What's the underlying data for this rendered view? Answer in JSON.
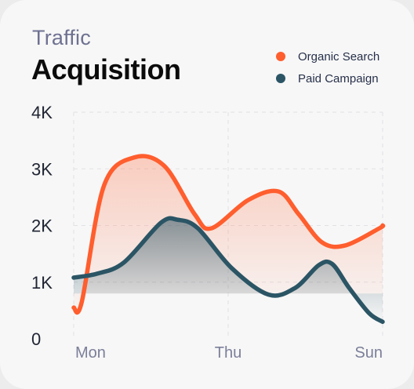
{
  "header": {
    "subtitle": "Traffic",
    "title": "Acquisition"
  },
  "colors": {
    "organic": "#ff5e2e",
    "paid": "#2b5565",
    "grid": "#e2e2e6"
  },
  "chart_data": {
    "type": "area",
    "title": "Acquisition",
    "subtitle": "Traffic",
    "x_ticks": [
      "Mon",
      "Thu",
      "Sun"
    ],
    "y_ticks": [
      "0",
      "1K",
      "2K",
      "3K",
      "4K"
    ],
    "ylim": [
      0,
      4000
    ],
    "legend_position": "top-right",
    "grid": true,
    "series": [
      {
        "name": "Organic Search",
        "color_key": "organic",
        "points": [
          [
            0,
            550
          ],
          [
            0.12,
            650
          ],
          [
            0.45,
            2700
          ],
          [
            0.9,
            3200
          ],
          [
            1.35,
            3050
          ],
          [
            1.8,
            2200
          ],
          [
            2.05,
            1950
          ],
          [
            2.6,
            2450
          ],
          [
            3.05,
            2600
          ],
          [
            3.35,
            2200
          ],
          [
            3.7,
            1700
          ],
          [
            4.05,
            1650
          ],
          [
            4.55,
            1950
          ],
          [
            4.6,
            2000
          ]
        ]
      },
      {
        "name": "Paid Campaign",
        "color_key": "paid",
        "points": [
          [
            0,
            1080
          ],
          [
            0.35,
            1150
          ],
          [
            0.75,
            1350
          ],
          [
            1.3,
            2050
          ],
          [
            1.55,
            2100
          ],
          [
            1.85,
            1950
          ],
          [
            2.35,
            1250
          ],
          [
            2.9,
            780
          ],
          [
            3.3,
            900
          ],
          [
            3.65,
            1300
          ],
          [
            3.85,
            1320
          ],
          [
            4.1,
            900
          ],
          [
            4.4,
            450
          ],
          [
            4.6,
            300
          ]
        ]
      }
    ]
  }
}
